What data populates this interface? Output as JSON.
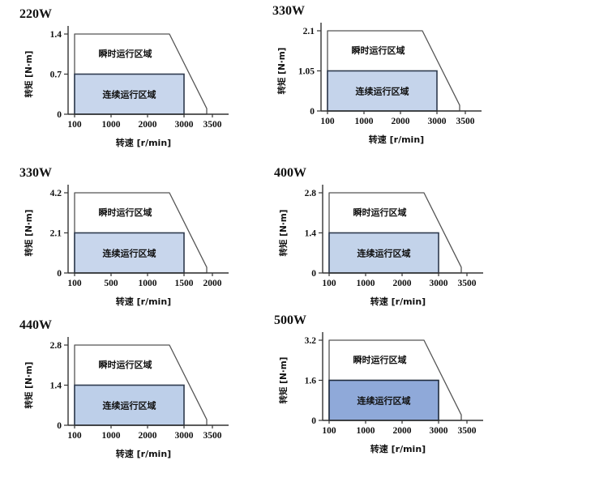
{
  "page": {
    "background": "#ffffff",
    "description_labels": {
      "instantaneous_region": "瞬时运行区域",
      "continuous_region": "连续运行区域",
      "x_axis_label": "转速 [r/min]",
      "y_axis_label": "转矩 [N·m]"
    }
  },
  "styles": {
    "axis_color": "#333333",
    "text_color": "#111111",
    "outline_stroke": "#555555",
    "rect_stroke": "#2e3a4e",
    "rect_stroke_dark": "#1e2a3c"
  },
  "chart_data": [
    {
      "type": "area",
      "title": "220W",
      "xlabel": "转速 [r/min]",
      "ylabel": "转矩 [N·m]",
      "x_ticks": [
        100,
        1000,
        2000,
        3000,
        3500
      ],
      "y_ticks": [
        0,
        0.7,
        1.4
      ],
      "y_tick_labels": [
        "0",
        "0.7",
        "1.4"
      ],
      "ylim": [
        0,
        1.4
      ],
      "fill": "#c8d6ec",
      "regions": [
        {
          "name": "instantaneous",
          "label": "瞬时运行区域",
          "outline": [
            [
              100,
              0
            ],
            [
              100,
              1.4
            ],
            [
              2600,
              1.4
            ],
            [
              3400,
              0.1
            ],
            [
              3400,
              0
            ]
          ]
        },
        {
          "name": "continuous",
          "label": "连续运行区域",
          "rect": {
            "x1": 100,
            "y1": 0,
            "x2": 3000,
            "y2": 0.7
          }
        }
      ]
    },
    {
      "type": "area",
      "title": "330W",
      "xlabel": "转速 [r/min]",
      "ylabel": "转矩 [N·m]",
      "x_ticks": [
        100,
        1000,
        2000,
        3000,
        3500
      ],
      "y_ticks": [
        0,
        1.05,
        2.1
      ],
      "y_tick_labels": [
        "0",
        "1.05",
        "2.1"
      ],
      "ylim": [
        0,
        2.1
      ],
      "fill": "#c5d4eb",
      "regions": [
        {
          "name": "instantaneous",
          "label": "瞬时运行区域",
          "outline": [
            [
              100,
              0
            ],
            [
              100,
              2.1
            ],
            [
              2600,
              2.1
            ],
            [
              3400,
              0.15
            ],
            [
              3400,
              0
            ]
          ]
        },
        {
          "name": "continuous",
          "label": "连续运行区域",
          "rect": {
            "x1": 100,
            "y1": 0,
            "x2": 3000,
            "y2": 1.05
          }
        }
      ]
    },
    {
      "type": "area",
      "title": "330W",
      "xlabel": "转速 [r/min]",
      "ylabel": "转矩 [N·m]",
      "x_ticks": [
        100,
        500,
        1000,
        1500,
        2000
      ],
      "y_ticks": [
        0,
        2.1,
        4.2
      ],
      "y_tick_labels": [
        "0",
        "2.1",
        "4.2"
      ],
      "ylim": [
        0,
        4.2
      ],
      "fill": "#c8d6ec",
      "regions": [
        {
          "name": "instantaneous",
          "label": "瞬时运行区域",
          "outline": [
            [
              100,
              0
            ],
            [
              100,
              4.2
            ],
            [
              1300,
              4.2
            ],
            [
              1900,
              0.3
            ],
            [
              1900,
              0
            ]
          ]
        },
        {
          "name": "continuous",
          "label": "连续运行区域",
          "rect": {
            "x1": 100,
            "y1": 0,
            "x2": 1500,
            "y2": 2.1
          }
        }
      ]
    },
    {
      "type": "area",
      "title": "400W",
      "xlabel": "转速 [r/min]",
      "ylabel": "转矩 [N·m]",
      "x_ticks": [
        100,
        1000,
        2000,
        3000,
        3500
      ],
      "y_ticks": [
        0,
        1.4,
        2.8
      ],
      "y_tick_labels": [
        "0",
        "1.4",
        "2.8"
      ],
      "ylim": [
        0,
        2.8
      ],
      "fill": "#c3d3ea",
      "regions": [
        {
          "name": "instantaneous",
          "label": "瞬时运行区域",
          "outline": [
            [
              100,
              0
            ],
            [
              100,
              2.8
            ],
            [
              2600,
              2.8
            ],
            [
              3400,
              0.2
            ],
            [
              3400,
              0
            ]
          ]
        },
        {
          "name": "continuous",
          "label": "连续运行区域",
          "rect": {
            "x1": 100,
            "y1": 0,
            "x2": 3000,
            "y2": 1.4
          }
        }
      ]
    },
    {
      "type": "area",
      "title": "440W",
      "xlabel": "转速 [r/min]",
      "ylabel": "转矩 [N·m]",
      "x_ticks": [
        100,
        1000,
        2000,
        3000,
        3500
      ],
      "y_ticks": [
        0,
        1.4,
        2.8
      ],
      "y_tick_labels": [
        "0",
        "1.4",
        "2.8"
      ],
      "ylim": [
        0,
        2.8
      ],
      "fill": "#bdcfe9",
      "regions": [
        {
          "name": "instantaneous",
          "label": "瞬时运行区域",
          "outline": [
            [
              100,
              0
            ],
            [
              100,
              2.8
            ],
            [
              2600,
              2.8
            ],
            [
              3400,
              0.2
            ],
            [
              3400,
              0
            ]
          ]
        },
        {
          "name": "continuous",
          "label": "连续运行区域",
          "rect": {
            "x1": 100,
            "y1": 0,
            "x2": 3000,
            "y2": 1.4
          }
        }
      ]
    },
    {
      "type": "area",
      "title": "500W",
      "xlabel": "转速 [r/min]",
      "ylabel": "转矩 [N·m]",
      "x_ticks": [
        100,
        1000,
        2000,
        3000,
        3500
      ],
      "y_ticks": [
        0,
        1.6,
        3.2
      ],
      "y_tick_labels": [
        "0",
        "1.6",
        "3.2"
      ],
      "ylim": [
        0,
        3.2
      ],
      "fill": "#8fa9d9",
      "dark_border": true,
      "regions": [
        {
          "name": "instantaneous",
          "label": "瞬时运行区域",
          "outline": [
            [
              100,
              0
            ],
            [
              100,
              3.2
            ],
            [
              2600,
              3.2
            ],
            [
              3400,
              0.22
            ],
            [
              3400,
              0
            ]
          ]
        },
        {
          "name": "continuous",
          "label": "连续运行区域",
          "rect": {
            "x1": 100,
            "y1": 0,
            "x2": 3000,
            "y2": 1.6
          }
        }
      ]
    }
  ]
}
